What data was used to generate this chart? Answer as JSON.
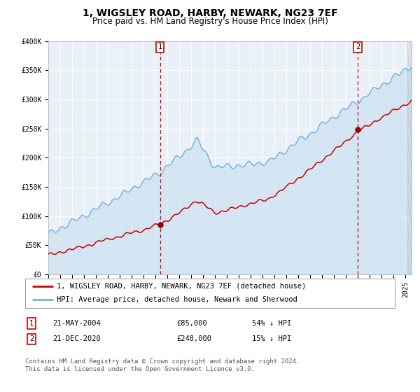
{
  "title": "1, WIGSLEY ROAD, HARBY, NEWARK, NG23 7EF",
  "subtitle": "Price paid vs. HM Land Registry's House Price Index (HPI)",
  "ylim": [
    0,
    400000
  ],
  "yticks": [
    0,
    50000,
    100000,
    150000,
    200000,
    250000,
    300000,
    350000,
    400000
  ],
  "ytick_labels": [
    "£0",
    "£50K",
    "£100K",
    "£150K",
    "£200K",
    "£250K",
    "£300K",
    "£350K",
    "£400K"
  ],
  "hpi_color": "#7ab4d8",
  "price_color": "#cc0000",
  "vline_color": "#cc0000",
  "fill_color": "#c8dff0",
  "transaction1_date": 2004.38,
  "transaction1_price": 85000,
  "transaction2_date": 2020.97,
  "transaction2_price": 248000,
  "xmin": 1995.0,
  "xmax": 2025.5,
  "legend_labels": [
    "1, WIGSLEY ROAD, HARBY, NEWARK, NG23 7EF (detached house)",
    "HPI: Average price, detached house, Newark and Sherwood"
  ],
  "note1_label": "1",
  "note1_date": "21-MAY-2004",
  "note1_price": "£85,000",
  "note1_pct": "54% ↓ HPI",
  "note2_label": "2",
  "note2_date": "21-DEC-2020",
  "note2_price": "£248,000",
  "note2_pct": "15% ↓ HPI",
  "footer": "Contains HM Land Registry data © Crown copyright and database right 2024.\nThis data is licensed under the Open Government Licence v3.0.",
  "plot_bg_color": "#eaf0f8",
  "title_fontsize": 10,
  "subtitle_fontsize": 8.5,
  "tick_fontsize": 7,
  "legend_fontsize": 7.5,
  "note_fontsize": 7.5,
  "footer_fontsize": 6.5
}
